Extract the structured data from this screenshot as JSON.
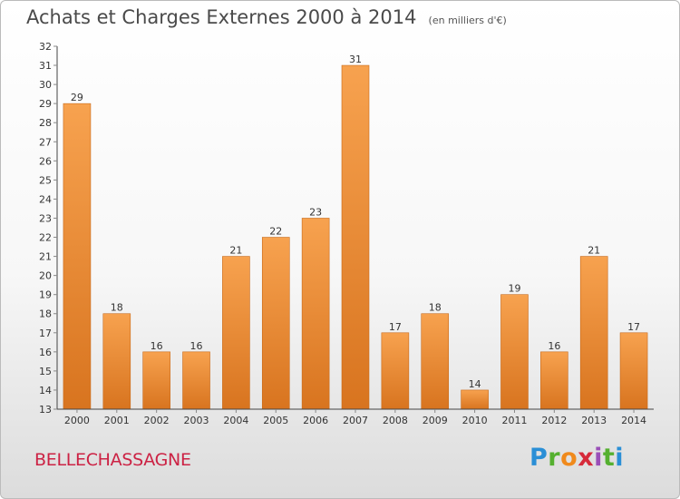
{
  "header": {
    "title": "Achats et Charges Externes 2000 à 2014",
    "unit": "(en milliers d'€)"
  },
  "footer": {
    "commune": "BELLECHASSAGNE",
    "brand": "Proxiti",
    "brand_colors": [
      "#2a8fd6",
      "#55b030",
      "#f08a1c",
      "#d62a3a",
      "#9a4fb8",
      "#55b030",
      "#2a8fd6"
    ]
  },
  "colors": {
    "bar_light": "#f7a24f",
    "bar_dark": "#d8741f",
    "axis": "#444444",
    "grid_tick": "#888888",
    "label_text": "#333333"
  },
  "chart_data": {
    "type": "bar",
    "title": "Achats et Charges Externes 2000 à 2014",
    "subtitle": "(en milliers d'€)",
    "xlabel": "",
    "ylabel": "",
    "categories": [
      "2000",
      "2001",
      "2002",
      "2003",
      "2004",
      "2005",
      "2006",
      "2007",
      "2008",
      "2009",
      "2010",
      "2011",
      "2012",
      "2013",
      "2014"
    ],
    "values": [
      29,
      18,
      16,
      16,
      21,
      22,
      23,
      31,
      17,
      18,
      14,
      19,
      16,
      21,
      17
    ],
    "ylim": [
      13,
      32
    ],
    "yticks": [
      "13",
      "14",
      "15",
      "16",
      "17",
      "18",
      "19",
      "20",
      "21",
      "22",
      "23",
      "24",
      "25",
      "26",
      "27",
      "28",
      "29",
      "30",
      "31",
      "32"
    ],
    "grid": false,
    "legend": "none"
  }
}
